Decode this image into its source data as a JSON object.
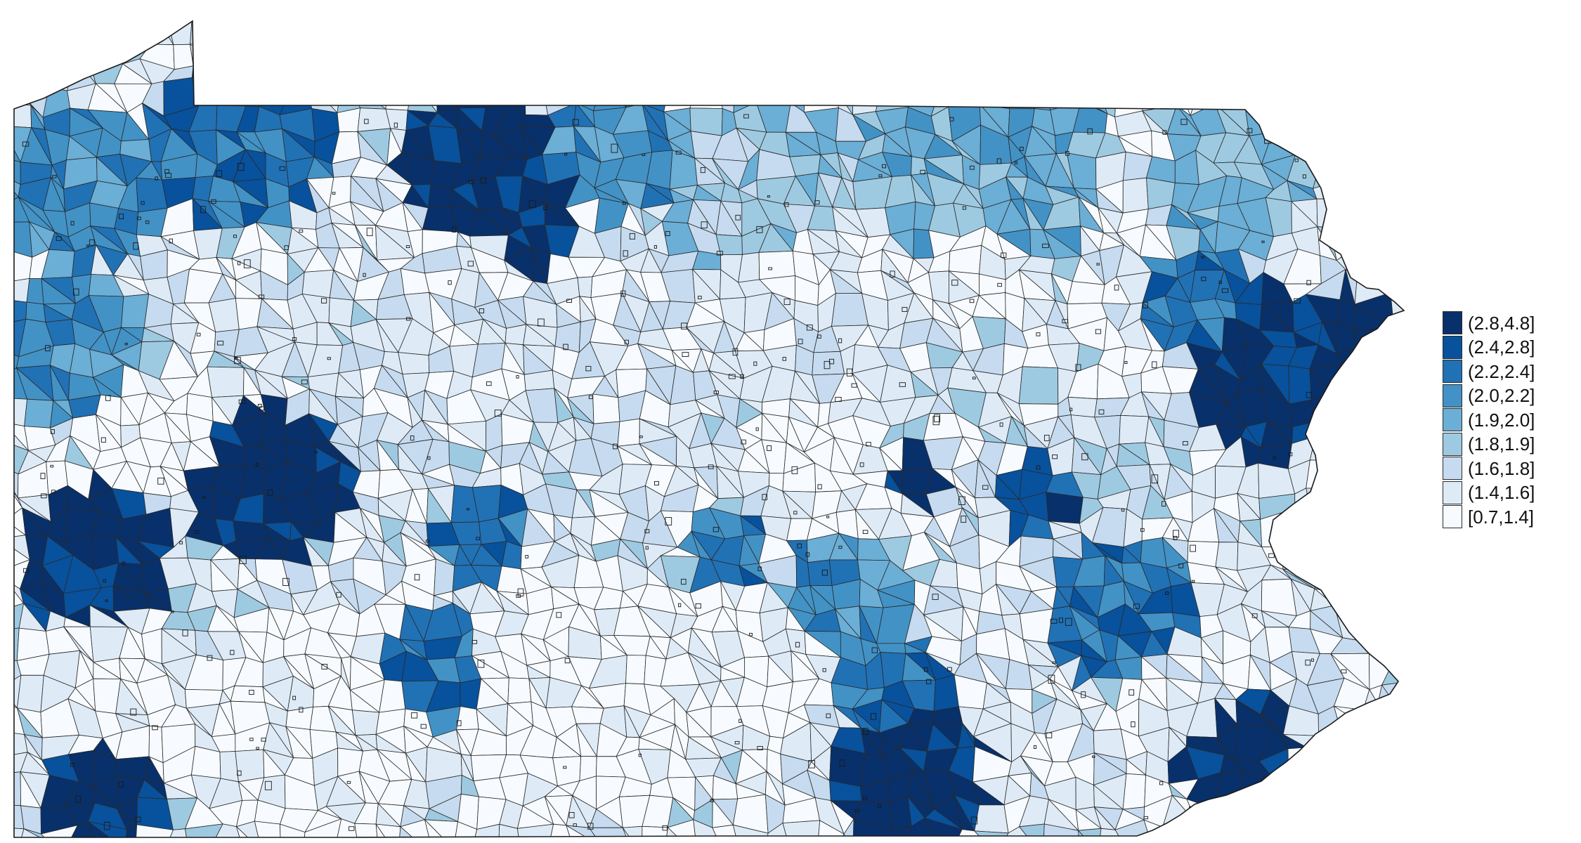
{
  "map": {
    "region": "Pennsylvania municipalities",
    "stroke_color": "#2a2a2a",
    "outline_color": "#1a1a1a"
  },
  "legend": {
    "classes": [
      {
        "label": "(2.8,4.8]",
        "color": "#08306b"
      },
      {
        "label": "(2.4,2.8]",
        "color": "#08519c"
      },
      {
        "label": "(2.2,2.4]",
        "color": "#2171b5"
      },
      {
        "label": "(2.0,2.2]",
        "color": "#4292c6"
      },
      {
        "label": "(1.9,2.0]",
        "color": "#6baed6"
      },
      {
        "label": "(1.8,1.9]",
        "color": "#9ecae1"
      },
      {
        "label": "(1.6,1.8]",
        "color": "#c6dbef"
      },
      {
        "label": "(1.4,1.6]",
        "color": "#deebf7"
      },
      {
        "label": "[0.7,1.4]",
        "color": "#f7fbff"
      }
    ]
  }
}
